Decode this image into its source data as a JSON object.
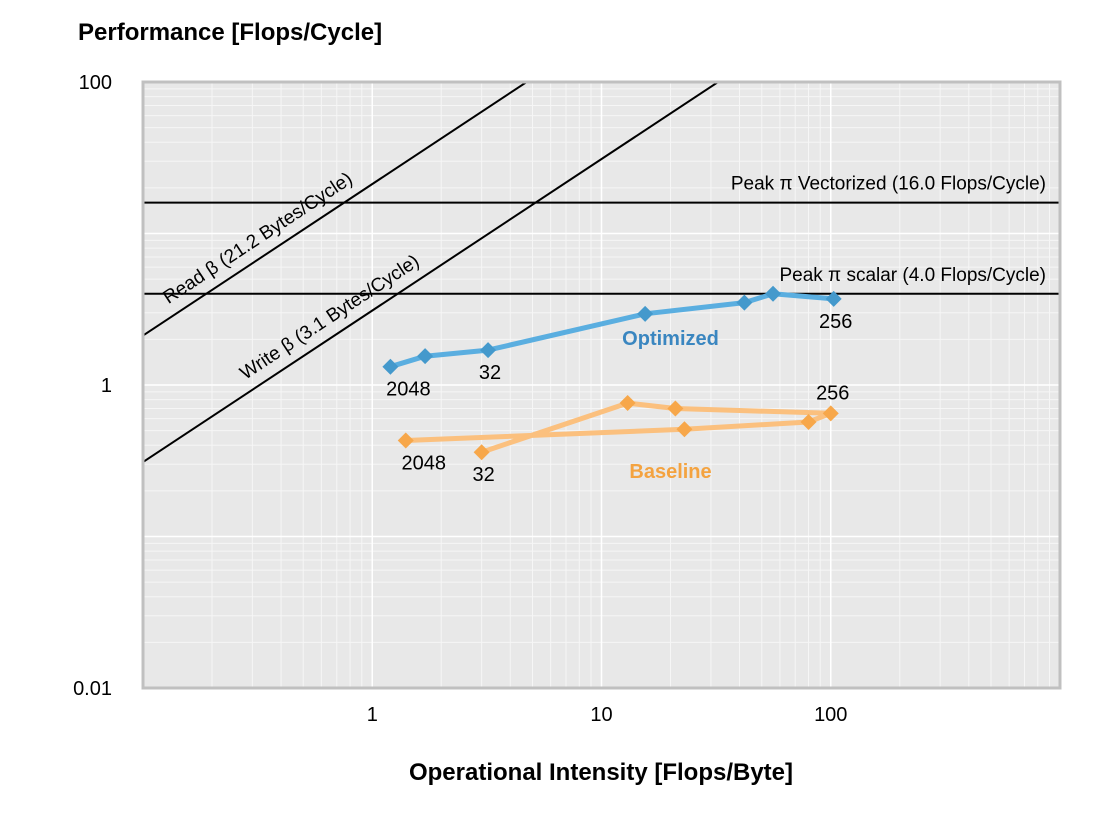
{
  "chart_data": {
    "type": "line",
    "title": "",
    "ylabel": "Performance [Flops/Cycle]",
    "xlabel": "Operational Intensity [Flops/Byte]",
    "x_scale": "log",
    "y_scale": "log",
    "xlim": [
      0.1,
      1000
    ],
    "ylim": [
      0.01,
      100
    ],
    "x_ticks": [
      {
        "value": 1,
        "label": "1"
      },
      {
        "value": 10,
        "label": "10"
      },
      {
        "value": 100,
        "label": "100"
      }
    ],
    "y_ticks": [
      {
        "value": 0.01,
        "label": "0.01"
      },
      {
        "value": 1,
        "label": "1"
      },
      {
        "value": 100,
        "label": "100"
      }
    ],
    "grid": true,
    "colors": {
      "plot_bg": "#e8e8e8",
      "frame": "#c0c0c0",
      "grid_major": "#ffffff",
      "grid_minor": "#f6f6f6",
      "optimized": "#5aaee0",
      "optimized_marker": "#4499cc",
      "optimized_label": "#3a86c0",
      "baseline": "#fbc07e",
      "baseline_marker": "#f7a74a",
      "baseline_label": "#f4a340"
    },
    "roofs": [
      {
        "name": "Peak π Vectorized (16.0 Flops/Cycle)",
        "kind": "compute",
        "value": 16.0
      },
      {
        "name": "Peak π scalar (4.0 Flops/Cycle)",
        "kind": "compute",
        "value": 4.0
      },
      {
        "name": "Read β (21.2 Bytes/Cycle)",
        "kind": "bandwidth",
        "value": 21.2
      },
      {
        "name": "Write β (3.1 Bytes/Cycle)",
        "kind": "bandwidth",
        "value": 3.1
      }
    ],
    "series": [
      {
        "name": "Optimized",
        "points": [
          {
            "x": 1.2,
            "y": 1.32,
            "label": "2048"
          },
          {
            "x": 1.7,
            "y": 1.55,
            "label": ""
          },
          {
            "x": 3.2,
            "y": 1.7,
            "label": "32"
          },
          {
            "x": 15.5,
            "y": 2.95,
            "label": ""
          },
          {
            "x": 42,
            "y": 3.5,
            "label": ""
          },
          {
            "x": 56,
            "y": 4.0,
            "label": ""
          },
          {
            "x": 103,
            "y": 3.7,
            "label": "256"
          }
        ]
      },
      {
        "name": "Baseline",
        "points": [
          {
            "x": 1.4,
            "y": 0.43,
            "label": "2048"
          },
          {
            "x": 23,
            "y": 0.51,
            "label": ""
          },
          {
            "x": 80,
            "y": 0.57,
            "label": ""
          },
          {
            "x": 100,
            "y": 0.65,
            "label": "256"
          },
          {
            "x": 21,
            "y": 0.7,
            "label": ""
          },
          {
            "x": 13,
            "y": 0.76,
            "label": ""
          },
          {
            "x": 3.0,
            "y": 0.36,
            "label": "32"
          }
        ]
      }
    ]
  }
}
